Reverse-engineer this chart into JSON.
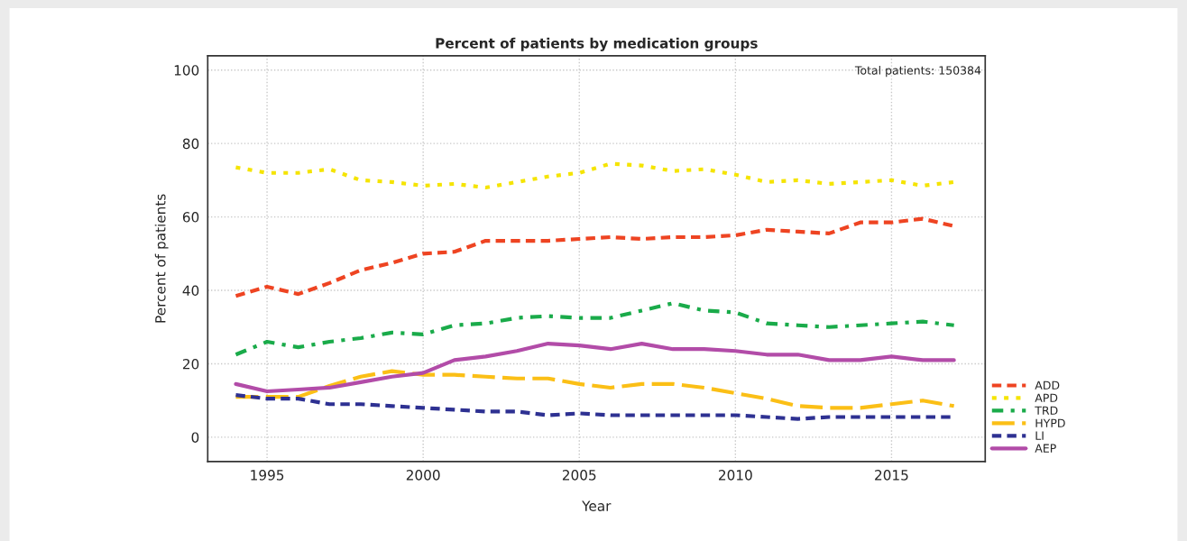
{
  "chart_data": {
    "type": "line",
    "title": "Percent of patients by medication groups",
    "xlabel": "Year",
    "ylabel": "Percent of patients",
    "annotations": [
      "Total patients: 150384"
    ],
    "x": [
      1994,
      1995,
      1996,
      1997,
      1998,
      1999,
      2000,
      2001,
      2002,
      2003,
      2004,
      2005,
      2006,
      2007,
      2008,
      2009,
      2010,
      2011,
      2012,
      2013,
      2014,
      2015,
      2016,
      2017
    ],
    "series": [
      {
        "name": "ADD",
        "color": "#ee4422",
        "line_style": "dashed",
        "values": [
          38.5,
          41,
          39,
          42,
          45.5,
          47.5,
          50,
          50.5,
          53.5,
          53.5,
          53.5,
          54,
          54.5,
          54,
          54.5,
          54.5,
          55,
          56.5,
          56,
          55.5,
          58.5,
          58.5,
          59.5,
          57.5
        ]
      },
      {
        "name": "APD",
        "color": "#f5e400",
        "line_style": "dotted",
        "values": [
          73.5,
          72,
          72,
          73,
          70,
          69.5,
          68.5,
          69,
          68,
          69.5,
          71,
          72,
          74.5,
          74,
          72.5,
          73,
          71.5,
          69.5,
          70,
          69,
          69.5,
          70,
          68.5,
          69.5
        ]
      },
      {
        "name": "TRD",
        "color": "#1aab4a",
        "line_style": "dashdot",
        "values": [
          22.5,
          26,
          24.5,
          26,
          27,
          28.5,
          28,
          30.5,
          31,
          32.5,
          33,
          32.5,
          32.5,
          34.5,
          36.5,
          34.5,
          34,
          31,
          30.5,
          30,
          30.5,
          31,
          31.5,
          30.5
        ]
      },
      {
        "name": "HYPD",
        "color": "#fbbf16",
        "line_style": "longdash",
        "values": [
          11,
          11,
          11,
          14,
          16.5,
          18,
          17,
          17,
          16.5,
          16,
          16,
          14.5,
          13.5,
          14.5,
          14.5,
          13.5,
          12,
          10.5,
          8.5,
          8,
          8,
          9,
          10,
          8.5
        ]
      },
      {
        "name": "LI",
        "color": "#2e3192",
        "line_style": "dashed",
        "values": [
          11.5,
          10.5,
          10.5,
          9,
          9,
          8.5,
          8,
          7.5,
          7,
          7,
          6,
          6.5,
          6,
          6,
          6,
          6,
          6,
          5.5,
          5,
          5.5,
          5.5,
          5.5,
          5.5,
          5.5
        ]
      },
      {
        "name": "AEP",
        "color": "#b24ca8",
        "line_style": "solid",
        "values": [
          14.5,
          12.5,
          13,
          13.5,
          15,
          16.5,
          17.5,
          21,
          22,
          23.5,
          25.5,
          25,
          24,
          25.5,
          24,
          24,
          23.5,
          22.5,
          22.5,
          21,
          21,
          22,
          21,
          21
        ]
      }
    ],
    "xlim": [
      1993.1,
      2018
    ],
    "xticks": [
      1995,
      2000,
      2005,
      2010,
      2015
    ],
    "ylim": [
      -6.6,
      103.9
    ],
    "yticks": [
      0,
      20,
      40,
      60,
      80,
      100
    ],
    "grid": true,
    "legend": "right",
    "marker": "none"
  }
}
